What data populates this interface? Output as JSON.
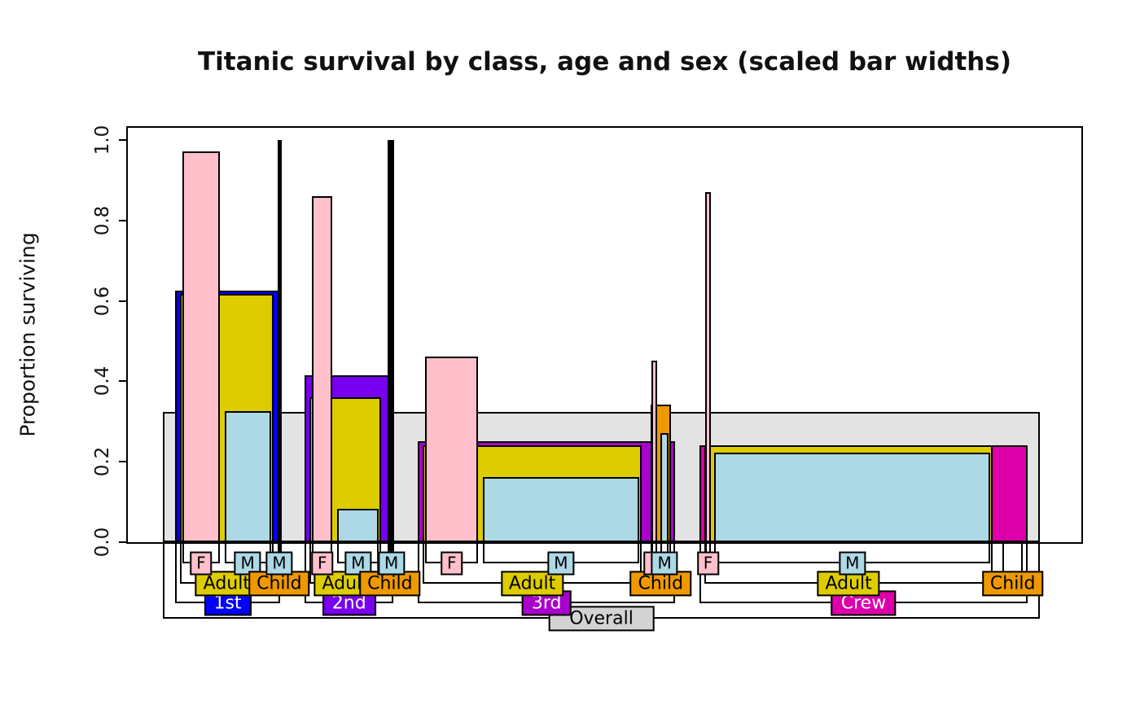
{
  "title": "Titanic survival by class, age and sex (scaled bar widths)",
  "y_axis": {
    "label": "Proportion surviving",
    "tick_labels": [
      "0.0",
      "0.2",
      "0.4",
      "0.6",
      "0.8",
      "1.0"
    ],
    "tick_values": [
      0,
      0.2,
      0.4,
      0.6,
      0.8,
      1.0
    ]
  },
  "chart_data": {
    "type": "bar",
    "variant": "nested proportion bars (barNest-style); bar widths scaled to group size n",
    "title": "Titanic survival by class, age and sex (scaled bar widths)",
    "xlabel": "",
    "ylabel": "Proportion surviving",
    "ylim": [
      0,
      1
    ],
    "grid": false,
    "legend": "none",
    "axis_box": true,
    "tree": {
      "label": "Overall",
      "n": 2201,
      "p": 0.323,
      "color": "#E3E3E3",
      "label_fill": "#D3D3D3",
      "children": [
        {
          "label": "1st",
          "n": 325,
          "p": 0.625,
          "color": "#0000FF",
          "text_color": "#FFFFFF",
          "children": [
            {
              "label": "Adult",
              "n": 319,
              "p": 0.618,
              "color": "#DDCC00",
              "children": [
                {
                  "label": "F",
                  "n": 144,
                  "p": 0.972,
                  "color": "#FFC0CB"
                },
                {
                  "label": "M",
                  "n": 175,
                  "p": 0.326,
                  "color": "#ADD8E6"
                }
              ]
            },
            {
              "label": "Child",
              "n": 6,
              "p": 1.0,
              "color": "#EE9900",
              "children": [
                {
                  "label": "F",
                  "n": 1,
                  "p": 1.0,
                  "color": "#FFC0CB"
                },
                {
                  "label": "M",
                  "n": 5,
                  "p": 1.0,
                  "color": "#ADD8E6"
                }
              ]
            }
          ]
        },
        {
          "label": "2nd",
          "n": 285,
          "p": 0.414,
          "color": "#7700EE",
          "text_color": "#FFFFFF",
          "children": [
            {
              "label": "Adult",
              "n": 261,
              "p": 0.36,
              "color": "#DDCC00",
              "children": [
                {
                  "label": "F",
                  "n": 93,
                  "p": 0.86,
                  "color": "#FFC0CB"
                },
                {
                  "label": "M",
                  "n": 168,
                  "p": 0.083,
                  "color": "#ADD8E6"
                }
              ]
            },
            {
              "label": "Child",
              "n": 24,
              "p": 1.0,
              "color": "#EE9900",
              "children": [
                {
                  "label": "F",
                  "n": 13,
                  "p": 1.0,
                  "color": "#FFC0CB"
                },
                {
                  "label": "M",
                  "n": 11,
                  "p": 1.0,
                  "color": "#ADD8E6"
                }
              ]
            }
          ]
        },
        {
          "label": "3rd",
          "n": 706,
          "p": 0.252,
          "color": "#AA00CC",
          "text_color": "#FFFFFF",
          "children": [
            {
              "label": "Adult",
              "n": 627,
              "p": 0.241,
              "color": "#DDCC00",
              "children": [
                {
                  "label": "F",
                  "n": 165,
                  "p": 0.461,
                  "color": "#FFC0CB"
                },
                {
                  "label": "M",
                  "n": 462,
                  "p": 0.162,
                  "color": "#ADD8E6"
                }
              ]
            },
            {
              "label": "Child",
              "n": 79,
              "p": 0.342,
              "color": "#EE9900",
              "children": [
                {
                  "label": "F",
                  "n": 31,
                  "p": 0.452,
                  "color": "#FFC0CB"
                },
                {
                  "label": "M",
                  "n": 48,
                  "p": 0.271,
                  "color": "#ADD8E6"
                }
              ]
            }
          ]
        },
        {
          "label": "Crew",
          "n": 885,
          "p": 0.24,
          "color": "#DD00AA",
          "text_color": "#FFFFFF",
          "children": [
            {
              "label": "Adult",
              "n": 885,
              "p": 0.24,
              "color": "#DDCC00",
              "children": [
                {
                  "label": "F",
                  "n": 23,
                  "p": 0.87,
                  "color": "#FFC0CB"
                },
                {
                  "label": "M",
                  "n": 862,
                  "p": 0.223,
                  "color": "#ADD8E6"
                }
              ]
            },
            {
              "label": "Child",
              "n": 0,
              "p": 0,
              "color": "#EE9900",
              "children": []
            }
          ]
        }
      ]
    }
  }
}
